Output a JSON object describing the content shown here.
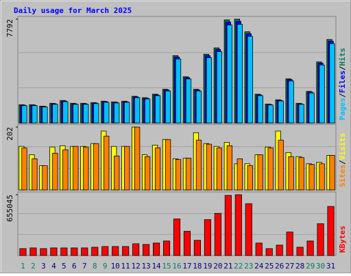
{
  "chart_data": [
    {
      "type": "bar",
      "title": "Daily usage for March 2025",
      "legend_separator": "/",
      "ylim": [
        0,
        7792
      ],
      "yticks": [
        7792
      ],
      "series": [
        {
          "name": "Hits",
          "color": "#00805c",
          "values": [
            1369,
            1369,
            1264,
            1474,
            1685,
            1474,
            1474,
            1527,
            1632,
            1580,
            1632,
            2001,
            1895,
            2159,
            2527,
            5054,
            3475,
            2527,
            5160,
            5634,
            7740,
            7792,
            6845,
            2159,
            1422,
            1737,
            3317,
            1474,
            2369,
            4581,
            6265
          ]
        },
        {
          "name": "Files",
          "color": "#0000ff",
          "values": [
            1340,
            1340,
            1240,
            1440,
            1650,
            1440,
            1440,
            1500,
            1600,
            1550,
            1600,
            1960,
            1860,
            2110,
            2480,
            4950,
            3400,
            2480,
            5050,
            5520,
            7580,
            7630,
            6700,
            2110,
            1390,
            1700,
            3250,
            1440,
            2320,
            4490,
            6140
          ]
        },
        {
          "name": "Pages",
          "color": "#00c0ff",
          "values": [
            1300,
            1300,
            1200,
            1400,
            1600,
            1400,
            1400,
            1450,
            1550,
            1500,
            1550,
            1900,
            1800,
            2050,
            2400,
            4800,
            3300,
            2400,
            4900,
            5350,
            7350,
            7400,
            6500,
            2050,
            1350,
            1650,
            3150,
            1400,
            2250,
            4350,
            5950
          ]
        }
      ]
    },
    {
      "type": "bar",
      "ylim": [
        0,
        202
      ],
      "yticks": [
        202
      ],
      "legend_separator": "/",
      "series": [
        {
          "name": "Visits",
          "color": "#ffff00",
          "values": [
            140,
            113,
            78,
            138,
            142,
            140,
            140,
            149,
            189,
            140,
            140,
            202,
            113,
            144,
            162,
            100,
            102,
            184,
            149,
            140,
            153,
            84,
            84,
            113,
            138,
            189,
            120,
            107,
            84,
            89,
            111
          ]
        },
        {
          "name": "Sites",
          "color": "#ff8000",
          "values": [
            135,
            100,
            78,
            118,
            129,
            140,
            138,
            149,
            173,
            109,
            140,
            202,
            107,
            135,
            162,
            98,
            102,
            160,
            147,
            135,
            142,
            100,
            78,
            113,
            135,
            160,
            107,
            104,
            82,
            84,
            111
          ]
        }
      ]
    },
    {
      "type": "bar",
      "ylim": [
        0,
        655045
      ],
      "yticks": [
        655045
      ],
      "categories": [
        "1",
        "2",
        "3",
        "4",
        "5",
        "6",
        "7",
        "8",
        "9",
        "10",
        "11",
        "12",
        "13",
        "14",
        "15",
        "16",
        "17",
        "18",
        "19",
        "20",
        "21",
        "22",
        "23",
        "24",
        "25",
        "26",
        "27",
        "28",
        "29",
        "30",
        "31"
      ],
      "category_colors": [
        "#00805c",
        "#00805c",
        "#000080",
        "#000080",
        "#000080",
        "#000080",
        "#000080",
        "#00805c",
        "#00805c",
        "#000080",
        "#000080",
        "#000080",
        "#000080",
        "#000080",
        "#00805c",
        "#00805c",
        "#000080",
        "#000080",
        "#000080",
        "#000080",
        "#000080",
        "#00805c",
        "#00805c",
        "#000080",
        "#000080",
        "#000080",
        "#000080",
        "#000080",
        "#00805c",
        "#00805c",
        "#000080"
      ],
      "series": [
        {
          "name": "KBytes",
          "color": "#ff0000",
          "values": [
            74440,
            81884,
            74440,
            81884,
            81884,
            81884,
            81884,
            89328,
            96772,
            96772,
            96772,
            126548,
            119104,
            133992,
            156324,
            394532,
            260540,
            163768,
            387088,
            454084,
            647628,
            655045,
            558300,
            133992,
            74440,
            111660,
            253096,
            89328,
            156324,
            342424,
            528524
          ]
        }
      ]
    }
  ]
}
